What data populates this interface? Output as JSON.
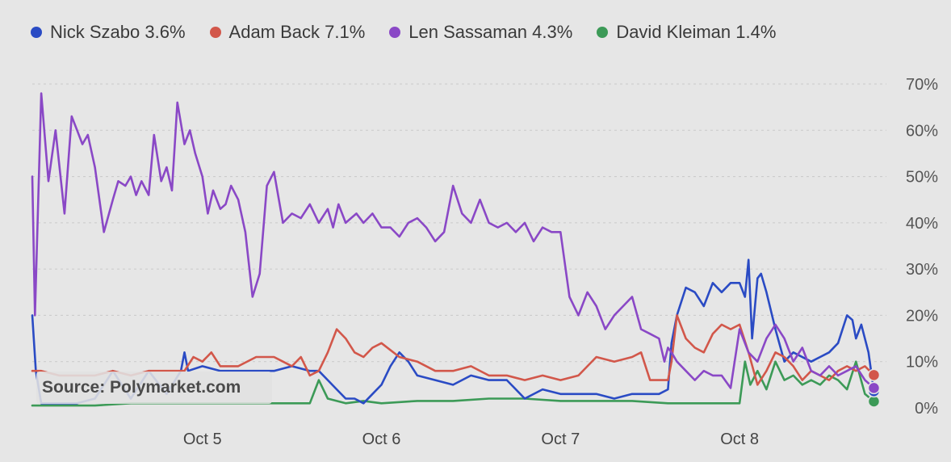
{
  "legend": {
    "items": [
      {
        "label": "Nick Szabo 3.6%",
        "color": "#2a4bc4"
      },
      {
        "label": "Adam Back 7.1%",
        "color": "#d2574a"
      },
      {
        "label": "Len Sassaman 4.3%",
        "color": "#8a48c6"
      },
      {
        "label": "David Kleiman 1.4%",
        "color": "#3c9a57"
      }
    ]
  },
  "source": "Source: Polymarket.com",
  "chart_data": {
    "type": "line",
    "ylim": [
      0,
      70
    ],
    "ytick_labels": [
      "0%",
      "10%",
      "20%",
      "30%",
      "40%",
      "50%",
      "60%",
      "70%"
    ],
    "ytick_values": [
      0,
      10,
      20,
      30,
      40,
      50,
      60,
      70
    ],
    "xlim": [
      4.05,
      8.82
    ],
    "xtick_labels": [
      "Oct 5",
      "Oct 6",
      "Oct 7",
      "Oct 8"
    ],
    "xtick_values": [
      5,
      6,
      7,
      8
    ],
    "grid": true,
    "legend_position": "top",
    "series": [
      {
        "name": "Nick Szabo",
        "color": "#2a4bc4",
        "x": [
          4.05,
          4.07,
          4.1,
          4.2,
          4.3,
          4.4,
          4.5,
          4.6,
          4.7,
          4.8,
          4.88,
          4.9,
          4.92,
          5.0,
          5.1,
          5.2,
          5.3,
          5.4,
          5.5,
          5.6,
          5.65,
          5.7,
          5.75,
          5.8,
          5.85,
          5.9,
          5.95,
          6.0,
          6.05,
          6.1,
          6.15,
          6.2,
          6.3,
          6.4,
          6.5,
          6.6,
          6.7,
          6.8,
          6.9,
          7.0,
          7.1,
          7.2,
          7.3,
          7.4,
          7.5,
          7.55,
          7.6,
          7.62,
          7.65,
          7.7,
          7.75,
          7.8,
          7.85,
          7.9,
          7.95,
          8.0,
          8.03,
          8.05,
          8.07,
          8.1,
          8.12,
          8.15,
          8.2,
          8.25,
          8.3,
          8.4,
          8.5,
          8.55,
          8.6,
          8.63,
          8.65,
          8.68,
          8.72,
          8.75
        ],
        "values": [
          20,
          8,
          1,
          1,
          1,
          2,
          8,
          2,
          8,
          3,
          8,
          12,
          8,
          9,
          8,
          8,
          8,
          8,
          9,
          8,
          8,
          6,
          4,
          2,
          2,
          1,
          3,
          5,
          9,
          12,
          10,
          7,
          6,
          5,
          7,
          6,
          6,
          2,
          4,
          3,
          3,
          3,
          2,
          3,
          3,
          3,
          4,
          14,
          20,
          26,
          25,
          22,
          27,
          25,
          27,
          27,
          24,
          32,
          15,
          28,
          29,
          25,
          17,
          10,
          12,
          10,
          12,
          14,
          20,
          19,
          15,
          18,
          12,
          3.6
        ]
      },
      {
        "name": "Adam Back",
        "color": "#d2574a",
        "x": [
          4.05,
          4.1,
          4.2,
          4.3,
          4.4,
          4.5,
          4.6,
          4.7,
          4.8,
          4.85,
          4.9,
          4.95,
          5.0,
          5.05,
          5.1,
          5.2,
          5.3,
          5.4,
          5.45,
          5.5,
          5.55,
          5.6,
          5.65,
          5.7,
          5.75,
          5.8,
          5.85,
          5.9,
          5.95,
          6.0,
          6.1,
          6.2,
          6.3,
          6.4,
          6.5,
          6.6,
          6.7,
          6.8,
          6.9,
          7.0,
          7.1,
          7.2,
          7.3,
          7.4,
          7.45,
          7.5,
          7.55,
          7.6,
          7.62,
          7.65,
          7.7,
          7.75,
          7.8,
          7.85,
          7.9,
          7.95,
          8.0,
          8.05,
          8.1,
          8.15,
          8.2,
          8.25,
          8.3,
          8.35,
          8.4,
          8.45,
          8.5,
          8.55,
          8.6,
          8.65,
          8.7,
          8.75
        ],
        "values": [
          8,
          8,
          7,
          7,
          7,
          8,
          7,
          8,
          8,
          8,
          8,
          11,
          10,
          12,
          9,
          9,
          11,
          11,
          10,
          9,
          11,
          7,
          8,
          12,
          17,
          15,
          12,
          11,
          13,
          14,
          11,
          10,
          8,
          8,
          9,
          7,
          7,
          6,
          7,
          6,
          7,
          11,
          10,
          11,
          12,
          6,
          6,
          6,
          10,
          20,
          15,
          13,
          12,
          16,
          18,
          17,
          18,
          12,
          5,
          8,
          12,
          11,
          9,
          6,
          8,
          7,
          6,
          8,
          9,
          8,
          9,
          7.1
        ]
      },
      {
        "name": "Len Sassaman",
        "color": "#8a48c6",
        "x": [
          4.05,
          4.065,
          4.1,
          4.14,
          4.18,
          4.23,
          4.27,
          4.3,
          4.33,
          4.36,
          4.4,
          4.45,
          4.5,
          4.53,
          4.57,
          4.6,
          4.63,
          4.66,
          4.7,
          4.73,
          4.77,
          4.8,
          4.83,
          4.86,
          4.9,
          4.93,
          4.96,
          5.0,
          5.03,
          5.06,
          5.1,
          5.13,
          5.16,
          5.2,
          5.24,
          5.28,
          5.32,
          5.36,
          5.4,
          5.45,
          5.5,
          5.55,
          5.6,
          5.65,
          5.7,
          5.73,
          5.76,
          5.8,
          5.83,
          5.86,
          5.9,
          5.95,
          6.0,
          6.05,
          6.1,
          6.15,
          6.2,
          6.25,
          6.3,
          6.35,
          6.4,
          6.45,
          6.5,
          6.55,
          6.6,
          6.65,
          6.7,
          6.75,
          6.8,
          6.85,
          6.9,
          6.95,
          7.0,
          7.05,
          7.1,
          7.15,
          7.2,
          7.25,
          7.3,
          7.35,
          7.4,
          7.45,
          7.5,
          7.55,
          7.58,
          7.6,
          7.62,
          7.65,
          7.7,
          7.75,
          7.8,
          7.85,
          7.9,
          7.95,
          8.0,
          8.05,
          8.1,
          8.15,
          8.2,
          8.25,
          8.3,
          8.35,
          8.4,
          8.45,
          8.5,
          8.55,
          8.6,
          8.65,
          8.7,
          8.75
        ],
        "values": [
          50,
          20,
          68,
          49,
          60,
          42,
          63,
          60,
          57,
          59,
          52,
          38,
          45,
          49,
          48,
          50,
          46,
          49,
          46,
          59,
          49,
          52,
          47,
          66,
          57,
          60,
          55,
          50,
          42,
          47,
          43,
          44,
          48,
          45,
          38,
          24,
          29,
          48,
          51,
          40,
          42,
          41,
          44,
          40,
          43,
          39,
          44,
          40,
          41,
          42,
          40,
          42,
          39,
          39,
          37,
          40,
          41,
          39,
          36,
          38,
          48,
          42,
          40,
          45,
          40,
          39,
          40,
          38,
          40,
          36,
          39,
          38,
          38,
          24,
          20,
          25,
          22,
          17,
          20,
          22,
          24,
          17,
          16,
          15,
          10,
          13,
          12,
          10,
          8,
          6,
          8,
          7,
          7,
          4.3,
          17,
          12,
          10,
          15,
          18,
          15,
          10,
          13,
          8,
          7,
          9,
          7,
          8,
          9,
          6,
          4.3
        ]
      },
      {
        "name": "David Kleiman",
        "color": "#3c9a57",
        "x": [
          4.05,
          4.2,
          4.4,
          4.6,
          4.8,
          5.0,
          5.2,
          5.4,
          5.6,
          5.65,
          5.7,
          5.75,
          5.8,
          5.9,
          6.0,
          6.2,
          6.4,
          6.6,
          6.8,
          7.0,
          7.2,
          7.4,
          7.6,
          7.8,
          7.9,
          8.0,
          8.03,
          8.06,
          8.1,
          8.15,
          8.2,
          8.25,
          8.3,
          8.35,
          8.4,
          8.45,
          8.5,
          8.55,
          8.6,
          8.65,
          8.7,
          8.75
        ],
        "values": [
          0.5,
          0.5,
          0.5,
          1,
          1,
          1,
          1,
          1,
          1,
          6,
          2,
          1.5,
          1,
          1.5,
          1,
          1.5,
          1.5,
          2,
          2,
          1.5,
          1.5,
          1.5,
          1,
          1,
          1,
          1,
          10,
          5,
          8,
          4,
          10,
          6,
          7,
          5,
          6,
          5,
          7,
          6,
          4,
          10,
          3,
          1.4
        ]
      }
    ]
  }
}
